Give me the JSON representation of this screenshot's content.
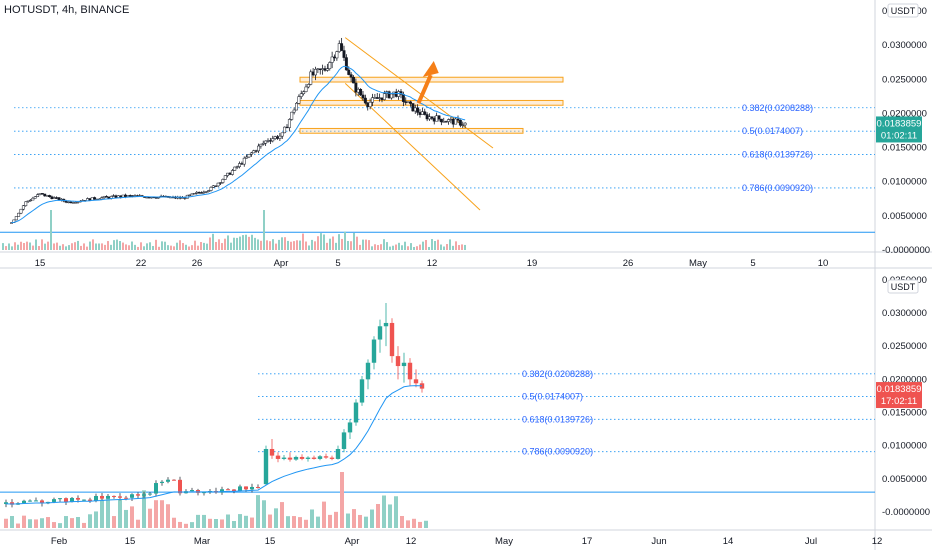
{
  "header": {
    "title": "HOTUSDT, 4h, BINANCE"
  },
  "colors": {
    "up": "#26a69a",
    "down": "#ef5350",
    "ema": "#2196f3",
    "fib": "#2196f3",
    "fib_label": "#2962ff",
    "channel": "#f7a21b",
    "zone": "#fbcb8f",
    "arrow": "#f57f17",
    "grid_border": "#d1d4dc",
    "axis_text": "#131722",
    "up_vol": "#8fd0c6",
    "down_vol": "#f4a6a6",
    "price_tag_top": "#26a69a",
    "price_tag_bottom": "#ef5350"
  },
  "chart_data": [
    {
      "type": "candlestick",
      "title": "HOTUSDT, 4h, BINANCE",
      "currency_label": "USDT",
      "x_tick_labels": [
        "15",
        "22",
        "26",
        "Apr",
        "5",
        "12",
        "19",
        "26",
        "May",
        "5",
        "10"
      ],
      "y_tick_labels": [
        "0.0350000",
        "0.0300000",
        "0.0250000",
        "0.0200000",
        "0.0150000",
        "0.0100000",
        "0.0050000",
        "-0.0000000"
      ],
      "ylim": [
        -0.0005,
        0.0365
      ],
      "current_price": "0.0183859",
      "countdown": "01:02:11",
      "fib_levels": [
        {
          "label": "0.382(0.0208288)",
          "value": 0.0208288
        },
        {
          "label": "0.5(0.0174007)",
          "value": 0.0174007
        },
        {
          "label": "0.618(0.0139726)",
          "value": 0.0139726
        },
        {
          "label": "0.786(0.0090920)",
          "value": 0.009092
        }
      ],
      "blue_level": 0.0026,
      "resistance_zones": [
        [
          0.0246,
          0.0253
        ],
        [
          0.0212,
          0.0219
        ],
        [
          0.0171,
          0.0178
        ]
      ],
      "channel_upper": {
        "from": [
          "Apr 5",
          0.0311
        ],
        "to": [
          "Apr 13",
          0.0164
        ]
      },
      "channel_lower": {
        "from": [
          "Apr 5",
          0.0244
        ],
        "to": [
          "Apr 18",
          0.0065
        ]
      },
      "arrow": {
        "from": [
          "Apr 10",
          0.0215
        ],
        "to": [
          "Apr 11",
          0.0265
        ]
      },
      "price_series": [
        [
          "Mar 13",
          0.004
        ],
        [
          "Mar 14",
          0.007
        ],
        [
          "Mar 15",
          0.0082
        ],
        [
          "Mar 17",
          0.007
        ],
        [
          "Mar 19",
          0.0076
        ],
        [
          "Mar 21",
          0.0079
        ],
        [
          "Mar 23",
          0.0078
        ],
        [
          "Mar 25",
          0.0076
        ],
        [
          "Mar 27",
          0.009
        ],
        [
          "Mar 28",
          0.0107
        ],
        [
          "Mar 29",
          0.0125
        ],
        [
          "Mar 30",
          0.0145
        ],
        [
          "Mar 31",
          0.0162
        ],
        [
          "Apr 1",
          0.0168
        ],
        [
          "Apr 2",
          0.0215
        ],
        [
          "Apr 3",
          0.0255
        ],
        [
          "Apr 4",
          0.0265
        ],
        [
          "Apr 5",
          0.03
        ],
        [
          "Apr 6",
          0.024
        ],
        [
          "Apr 7",
          0.0215
        ],
        [
          "Apr 8",
          0.0225
        ],
        [
          "Apr 9",
          0.023
        ],
        [
          "Apr 10",
          0.021
        ],
        [
          "Apr 11",
          0.0196
        ],
        [
          "Apr 12",
          0.0192
        ],
        [
          "Apr 13",
          0.0188
        ],
        [
          "Apr 14",
          0.0184
        ]
      ]
    },
    {
      "type": "candlestick",
      "currency_label": "USDT",
      "x_tick_labels": [
        "Feb",
        "15",
        "Mar",
        "15",
        "Apr",
        "12",
        "May",
        "17",
        "Jun",
        "14",
        "Jul",
        "12"
      ],
      "y_tick_labels": [
        "0.0350000",
        "0.0300000",
        "0.0250000",
        "0.0200000",
        "0.0150000",
        "0.0100000",
        "0.0050000",
        "-0.0000000"
      ],
      "ylim": [
        -0.0008,
        0.0365
      ],
      "current_price": "0.0183859",
      "countdown": "17:02:11",
      "fib_levels": [
        {
          "label": "0.382(0.0208288)",
          "value": 0.0208288
        },
        {
          "label": "0.5(0.0174007)",
          "value": 0.0174007
        },
        {
          "label": "0.618(0.0139726)",
          "value": 0.0139726
        },
        {
          "label": "0.786(0.0090920)",
          "value": 0.009092
        }
      ],
      "blue_level": 0.003,
      "candles_daily": [
        [
          "Mar 12",
          0.0042,
          0.01,
          0.004,
          0.0095
        ],
        [
          "Mar 13",
          0.0095,
          0.011,
          0.008,
          0.0085
        ],
        [
          "Mar 14",
          0.0085,
          0.009,
          0.0075,
          0.008
        ],
        [
          "Mar 15",
          0.008,
          0.0086,
          0.0078,
          0.0082
        ],
        [
          "Mar 16",
          0.0082,
          0.009,
          0.0076,
          0.0079
        ],
        [
          "Mar 17",
          0.0079,
          0.0085,
          0.0077,
          0.0083
        ],
        [
          "Mar 18",
          0.0083,
          0.0087,
          0.0078,
          0.008
        ],
        [
          "Mar 19",
          0.008,
          0.0084,
          0.0076,
          0.0082
        ],
        [
          "Mar 20",
          0.0082,
          0.0085,
          0.0079,
          0.008
        ],
        [
          "Mar 21",
          0.008,
          0.0086,
          0.0078,
          0.0084
        ],
        [
          "Mar 22",
          0.0084,
          0.0088,
          0.008,
          0.0082
        ],
        [
          "Mar 23",
          0.0082,
          0.0085,
          0.0078,
          0.008
        ],
        [
          "Mar 24",
          0.008,
          0.01,
          0.0079,
          0.0095
        ],
        [
          "Mar 25",
          0.0095,
          0.0125,
          0.009,
          0.012
        ],
        [
          "Mar 26",
          0.012,
          0.014,
          0.011,
          0.0135
        ],
        [
          "Mar 27",
          0.0135,
          0.017,
          0.013,
          0.0165
        ],
        [
          "Mar 28",
          0.0165,
          0.0205,
          0.016,
          0.02
        ],
        [
          "Mar 29",
          0.02,
          0.023,
          0.0185,
          0.0225
        ],
        [
          "Mar 30",
          0.0225,
          0.0265,
          0.0215,
          0.026
        ],
        [
          "Mar 31",
          0.026,
          0.029,
          0.024,
          0.028
        ],
        [
          "Apr 1",
          0.028,
          0.0315,
          0.025,
          0.0285
        ],
        [
          "Apr 2",
          0.0285,
          0.0292,
          0.0225,
          0.0235
        ],
        [
          "Apr 3",
          0.0235,
          0.025,
          0.02,
          0.022
        ],
        [
          "Apr 4",
          0.022,
          0.024,
          0.0195,
          0.0225
        ],
        [
          "Apr 5",
          0.0225,
          0.0232,
          0.019,
          0.02
        ],
        [
          "Apr 6",
          0.02,
          0.0215,
          0.0188,
          0.0194
        ],
        [
          "Apr 7",
          0.0194,
          0.0198,
          0.018,
          0.0186
        ]
      ]
    }
  ]
}
